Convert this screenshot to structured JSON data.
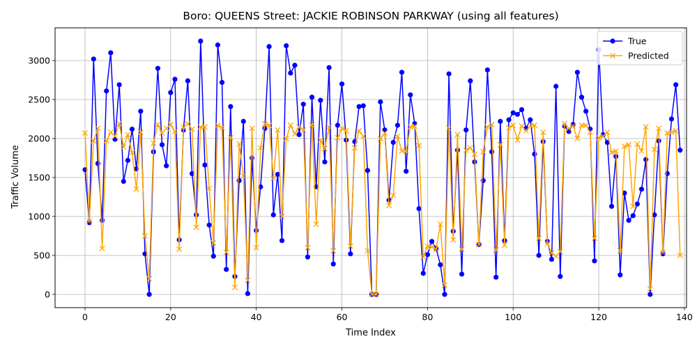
{
  "chart_data": {
    "type": "line",
    "title": "Boro: QUEENS Street: JACKIE ROBINSON PARKWAY (using all features)",
    "xlabel": "Time Index",
    "ylabel": "Traffic Volume",
    "xlim": [
      -7,
      140.5
    ],
    "ylim": [
      -170,
      3420
    ],
    "xticks": [
      0,
      20,
      40,
      60,
      80,
      100,
      120,
      140
    ],
    "yticks": [
      0,
      500,
      1000,
      1500,
      2000,
      2500,
      3000
    ],
    "grid": true,
    "legend_position": "upper right",
    "series": [
      {
        "name": "True",
        "color": "#0000ff",
        "marker": "o",
        "values": [
          1600,
          920,
          3020,
          1680,
          950,
          2610,
          3100,
          1990,
          2690,
          1450,
          1720,
          2120,
          1610,
          2350,
          520,
          0,
          1830,
          2900,
          1920,
          1650,
          2590,
          2760,
          700,
          2110,
          2740,
          1550,
          1020,
          3250,
          1660,
          890,
          490,
          3200,
          2720,
          320,
          2410,
          230,
          1460,
          2220,
          10,
          1750,
          820,
          1380,
          2130,
          3180,
          1020,
          1540,
          690,
          3190,
          2840,
          2940,
          2050,
          2440,
          480,
          2530,
          1380,
          2490,
          1700,
          2910,
          390,
          2170,
          2700,
          1980,
          520,
          1960,
          2410,
          2420,
          1590,
          0,
          0,
          2470,
          2110,
          1210,
          1950,
          2170,
          2850,
          1580,
          2560,
          2190,
          1100,
          270,
          510,
          680,
          590,
          380,
          0,
          2830,
          810,
          1850,
          260,
          2110,
          2740,
          1700,
          640,
          1460,
          2880,
          1830,
          220,
          2220,
          690,
          2240,
          2330,
          2310,
          2370,
          2130,
          2240,
          1800,
          500,
          1960,
          680,
          450,
          2670,
          230,
          2160,
          2090,
          2180,
          2850,
          2530,
          2350,
          2120,
          430,
          3140,
          2050,
          1950,
          1130,
          1770,
          250,
          1300,
          950,
          1010,
          1160,
          1350,
          1730,
          0,
          1020,
          1970,
          520,
          1550,
          2250,
          2690,
          1850
        ]
      },
      {
        "name": "Predicted",
        "color": "#ffa500",
        "marker": "x",
        "values": [
          2070,
          940,
          1970,
          2130,
          590,
          1970,
          2080,
          2030,
          2190,
          1890,
          2050,
          1820,
          1350,
          2080,
          750,
          200,
          1940,
          2180,
          2070,
          2130,
          2180,
          2090,
          580,
          2140,
          2190,
          2120,
          860,
          2150,
          2150,
          1360,
          660,
          2170,
          2140,
          540,
          2010,
          90,
          1930,
          1520,
          180,
          2130,
          600,
          1880,
          2190,
          2170,
          1490,
          2110,
          1000,
          2000,
          2170,
          2060,
          2150,
          2110,
          600,
          2170,
          900,
          1980,
          1870,
          2150,
          560,
          2010,
          2130,
          2100,
          620,
          1880,
          2100,
          2030,
          560,
          0,
          0,
          2000,
          2070,
          1140,
          1270,
          2030,
          1840,
          1840,
          2150,
          2160,
          1910,
          480,
          620,
          610,
          580,
          900,
          120,
          2130,
          700,
          2050,
          580,
          1850,
          1880,
          1800,
          640,
          1830,
          2150,
          2180,
          570,
          1920,
          630,
          2140,
          2170,
          1980,
          2160,
          2100,
          2160,
          2170,
          720,
          2080,
          650,
          530,
          490,
          550,
          2190,
          2130,
          2160,
          2000,
          2170,
          2170,
          2080,
          720,
          2010,
          2030,
          2080,
          1820,
          1840,
          560,
          1900,
          1920,
          1130,
          1930,
          1840,
          2150,
          70,
          1860,
          2130,
          540,
          2070,
          2080,
          2100,
          500
        ]
      }
    ]
  }
}
